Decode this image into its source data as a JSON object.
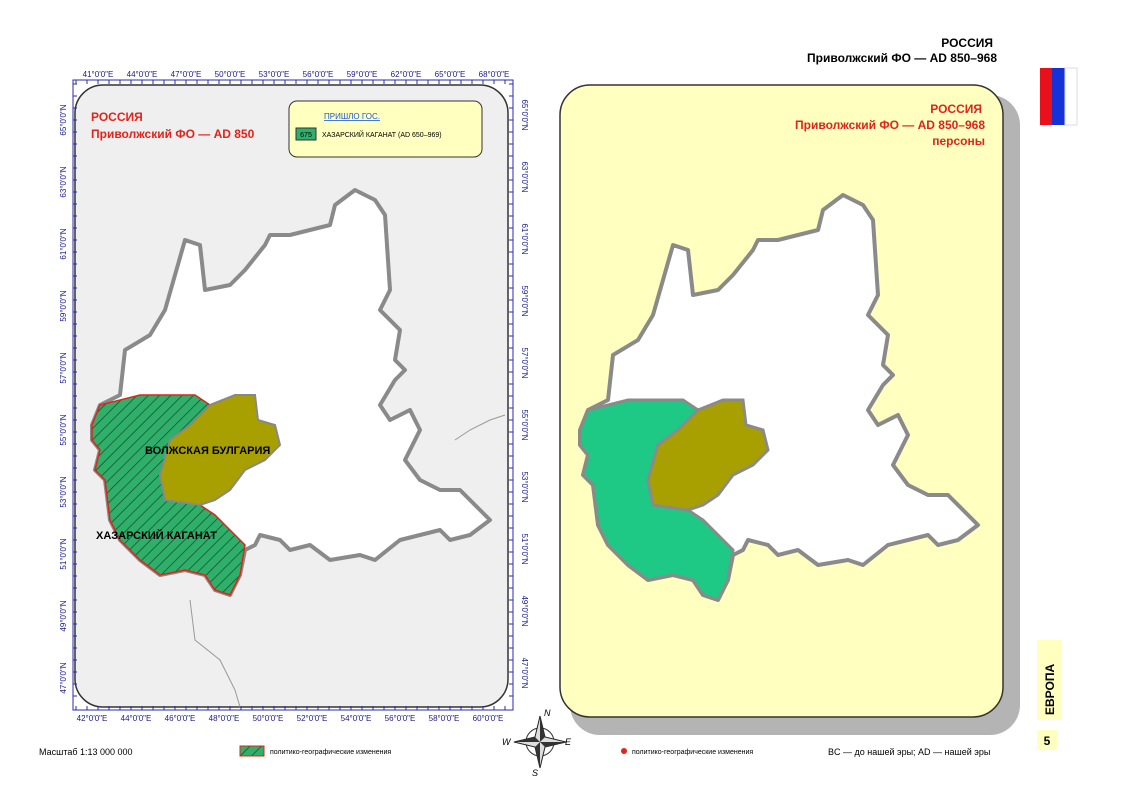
{
  "header": {
    "country": "РОССИЯ",
    "subtitle": "Приволжский ФО — AD 850–968"
  },
  "left_map": {
    "title": "РОССИЯ",
    "subtitle": "Приволжский ФО — AD 850",
    "legend": {
      "heading": "ПРИШЛО ГОС.",
      "code": "675",
      "entry": "ХАЗАРСКИЙ КАГАНАТ (AD 650–969)"
    },
    "regions": [
      "ВОЛЖСКАЯ БУЛГАРИЯ",
      "ХАЗАРСКИЙ КАГАНАТ"
    ],
    "top_labels": [
      "41°0'0\"E",
      "44°0'0\"E",
      "47°0'0\"E",
      "50°0'0\"E",
      "53°0'0\"E",
      "56°0'0\"E",
      "59°0'0\"E",
      "62°0'0\"E",
      "65°0'0\"E",
      "68°0'0\"E"
    ],
    "bottom_labels": [
      "42°0'0\"E",
      "44°0'0\"E",
      "46°0'0\"E",
      "48°0'0\"E",
      "50°0'0\"E",
      "52°0'0\"E",
      "54°0'0\"E",
      "56°0'0\"E",
      "58°0'0\"E",
      "60°0'0\"E"
    ],
    "left_labels": [
      "65°0'0\"N",
      "63°0'0\"N",
      "61°0'0\"N",
      "59°0'0\"N",
      "57°0'0\"N",
      "55°0'0\"N",
      "53°0'0\"N",
      "51°0'0\"N",
      "49°0'0\"N",
      "47°0'0\"N"
    ],
    "right_labels": [
      "65°0'0\"N",
      "63°0'0\"N",
      "61°0'0\"N",
      "59°0'0\"N",
      "57°0'0\"N",
      "55°0'0\"N",
      "53°0'0\"N",
      "51°0'0\"N",
      "49°0'0\"N",
      "47°0'0\"N"
    ]
  },
  "right_map": {
    "title": "РОССИЯ",
    "subtitle": "Приволжский ФО — AD 850–968",
    "note": "персоны"
  },
  "compass": {
    "n": "N",
    "w": "W",
    "e": "E",
    "s": "S"
  },
  "side": {
    "region": "ЕВРОПА",
    "page": "5"
  },
  "footer": {
    "scale": "Масштаб 1:13 000 000",
    "hatch_legend": "политико-географические изменения",
    "dot_legend": "политико-географические изменения",
    "era_note": "BC — до нашей эры; AD — нашей эры"
  }
}
